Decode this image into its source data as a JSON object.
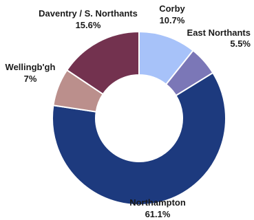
{
  "chart_data": {
    "type": "pie",
    "style": "donut",
    "slices": [
      {
        "label": "Corby",
        "value": 10.7,
        "value_label": "10.7%",
        "color": "#a7c2f9"
      },
      {
        "label": "East Northants",
        "value": 5.5,
        "value_label": "5.5%",
        "color": "#7b77b7"
      },
      {
        "label": "Northampton",
        "value": 61.1,
        "value_label": "61.1%",
        "color": "#1d3a7e"
      },
      {
        "label": "Wellingb'gh",
        "value": 7,
        "value_label": "7%",
        "color": "#bb8f8c"
      },
      {
        "label": "Daventry / S. Northants",
        "value": 15.6,
        "value_label": "15.6%",
        "color": "#73324f"
      }
    ]
  }
}
